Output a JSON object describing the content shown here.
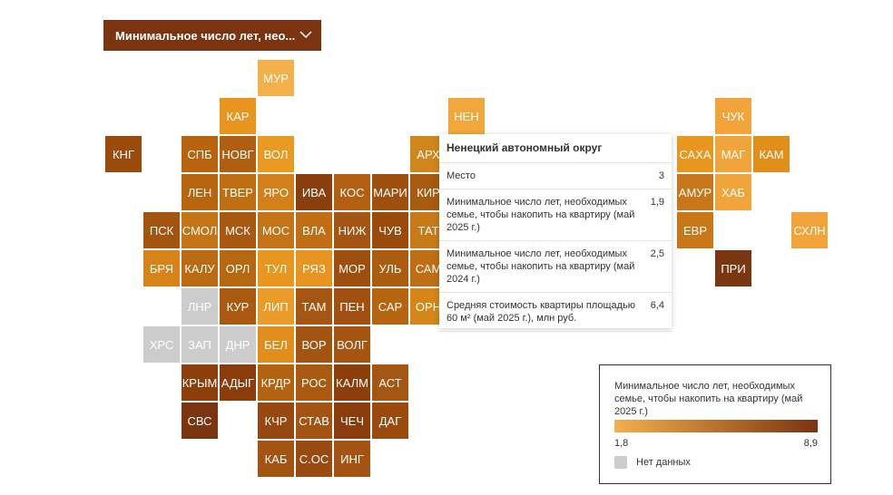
{
  "dropdown": {
    "label": "Минимальное число лет, нео..."
  },
  "tiles": [
    {
      "label": "МУР",
      "color": "#f4b04a"
    },
    {
      "label": "КАР",
      "color": "#e8951f"
    },
    {
      "label": "НЕН",
      "color": "#f2a73c"
    },
    {
      "label": "ЧУК",
      "color": "#f2a33a"
    },
    {
      "label": "КНГ",
      "color": "#9a4a0a"
    },
    {
      "label": "СПБ",
      "color": "#b8640f"
    },
    {
      "label": "НОВГ",
      "color": "#b05f10"
    },
    {
      "label": "ВОЛ",
      "color": "#e89a22"
    },
    {
      "label": "АРХ",
      "color": "#d0861a"
    },
    {
      "label": "САХА",
      "color": "#e8961e"
    },
    {
      "label": "МАГ",
      "color": "#f0a53a"
    },
    {
      "label": "КАМ",
      "color": "#e28e1b"
    },
    {
      "label": "ЛЕН",
      "color": "#b8650f"
    },
    {
      "label": "ТВЕР",
      "color": "#c06e12"
    },
    {
      "label": "ЯРО",
      "color": "#d2811a"
    },
    {
      "label": "ИВА",
      "color": "#8a3e0c"
    },
    {
      "label": "КОС",
      "color": "#b06010"
    },
    {
      "label": "МАРИ",
      "color": "#9e4f0d"
    },
    {
      "label": "КИР",
      "color": "#a85a0e"
    },
    {
      "label": "АМУР",
      "color": "#c7761a"
    },
    {
      "label": "ХАБ",
      "color": "#f0a43a"
    },
    {
      "label": "ПСК",
      "color": "#a35510"
    },
    {
      "label": "СМОЛ",
      "color": "#c47315"
    },
    {
      "label": "МСК",
      "color": "#a8580f"
    },
    {
      "label": "МОС",
      "color": "#c47416"
    },
    {
      "label": "ВЛА",
      "color": "#c06d13"
    },
    {
      "label": "НИЖ",
      "color": "#a35511"
    },
    {
      "label": "ЧУВ",
      "color": "#9a4b0c"
    },
    {
      "label": "ТАТ",
      "color": "#c87a18"
    },
    {
      "label": "ЕВР",
      "color": "#c97717"
    },
    {
      "label": "СХЛН",
      "color": "#f2a43a"
    },
    {
      "label": "БРЯ",
      "color": "#d78317"
    },
    {
      "label": "КАЛУ",
      "color": "#bb6a12"
    },
    {
      "label": "ОРЛ",
      "color": "#b6670f"
    },
    {
      "label": "ТУЛ",
      "color": "#e8961e"
    },
    {
      "label": "РЯЗ",
      "color": "#e79520"
    },
    {
      "label": "МОР",
      "color": "#9e4f0d"
    },
    {
      "label": "УЛЬ",
      "color": "#ac5c0f"
    },
    {
      "label": "САМ",
      "color": "#c06e14"
    },
    {
      "label": "ПРИ",
      "color": "#7a3610"
    },
    {
      "label": "ЛНР",
      "color": "#cccccc"
    },
    {
      "label": "КУР",
      "color": "#aa5a10"
    },
    {
      "label": "ЛИП",
      "color": "#eb9b28"
    },
    {
      "label": "ТАМ",
      "color": "#a65612"
    },
    {
      "label": "ПЕН",
      "color": "#a05010"
    },
    {
      "label": "САР",
      "color": "#b5650f"
    },
    {
      "label": "ОРН",
      "color": "#d68518"
    },
    {
      "label": "ХРС",
      "color": "#cccccc"
    },
    {
      "label": "ЗАП",
      "color": "#cccccc"
    },
    {
      "label": "ДНР",
      "color": "#cccccc"
    },
    {
      "label": "БЕЛ",
      "color": "#e08d1b"
    },
    {
      "label": "ВОР",
      "color": "#a35410"
    },
    {
      "label": "ВОЛГ",
      "color": "#a55510"
    },
    {
      "label": "КРЫМ",
      "color": "#8c3f0b"
    },
    {
      "label": "АДЫГ",
      "color": "#8a3d0b"
    },
    {
      "label": "КРДР",
      "color": "#b3620f"
    },
    {
      "label": "РОС",
      "color": "#aa5a10"
    },
    {
      "label": "КАЛМ",
      "color": "#8c3f0b"
    },
    {
      "label": "АСТ",
      "color": "#a55612"
    },
    {
      "label": "СВС",
      "color": "#7a3410"
    },
    {
      "label": "КЧР",
      "color": "#974710"
    },
    {
      "label": "СТАВ",
      "color": "#a35412"
    },
    {
      "label": "ЧЕЧ",
      "color": "#8a3c0c"
    },
    {
      "label": "ДАГ",
      "color": "#9a4a0d"
    },
    {
      "label": "КАБ",
      "color": "#a35312"
    },
    {
      "label": "С.ОС",
      "color": "#9a490f"
    },
    {
      "label": "ИНГ",
      "color": "#a45312"
    }
  ],
  "tooltip": {
    "title": "Ненецкий автономный округ",
    "rows": [
      {
        "label": "Место",
        "value": "3"
      },
      {
        "label": "Минимальное число лет, необходимых семье, чтобы накопить на квартиру (май 2025 г.)",
        "value": "1,9"
      },
      {
        "label": "Минимальное число лет, необходимых семье, чтобы накопить на квартиру (май 2024 г.)",
        "value": "2,5"
      },
      {
        "label": "Средняя стоимость квартиры площадью 60 м² (май 2025 г.), млн руб.",
        "value": "6,4"
      }
    ]
  },
  "legend": {
    "title": "Минимальное число лет, необходимых семье, чтобы накопить на квартиру (май 2025 г.)",
    "min": "1,8",
    "max": "8,9",
    "gradient": [
      "#f4b04a",
      "#7a3410"
    ],
    "no_data": "Нет данных",
    "no_data_color": "#cccccc"
  }
}
